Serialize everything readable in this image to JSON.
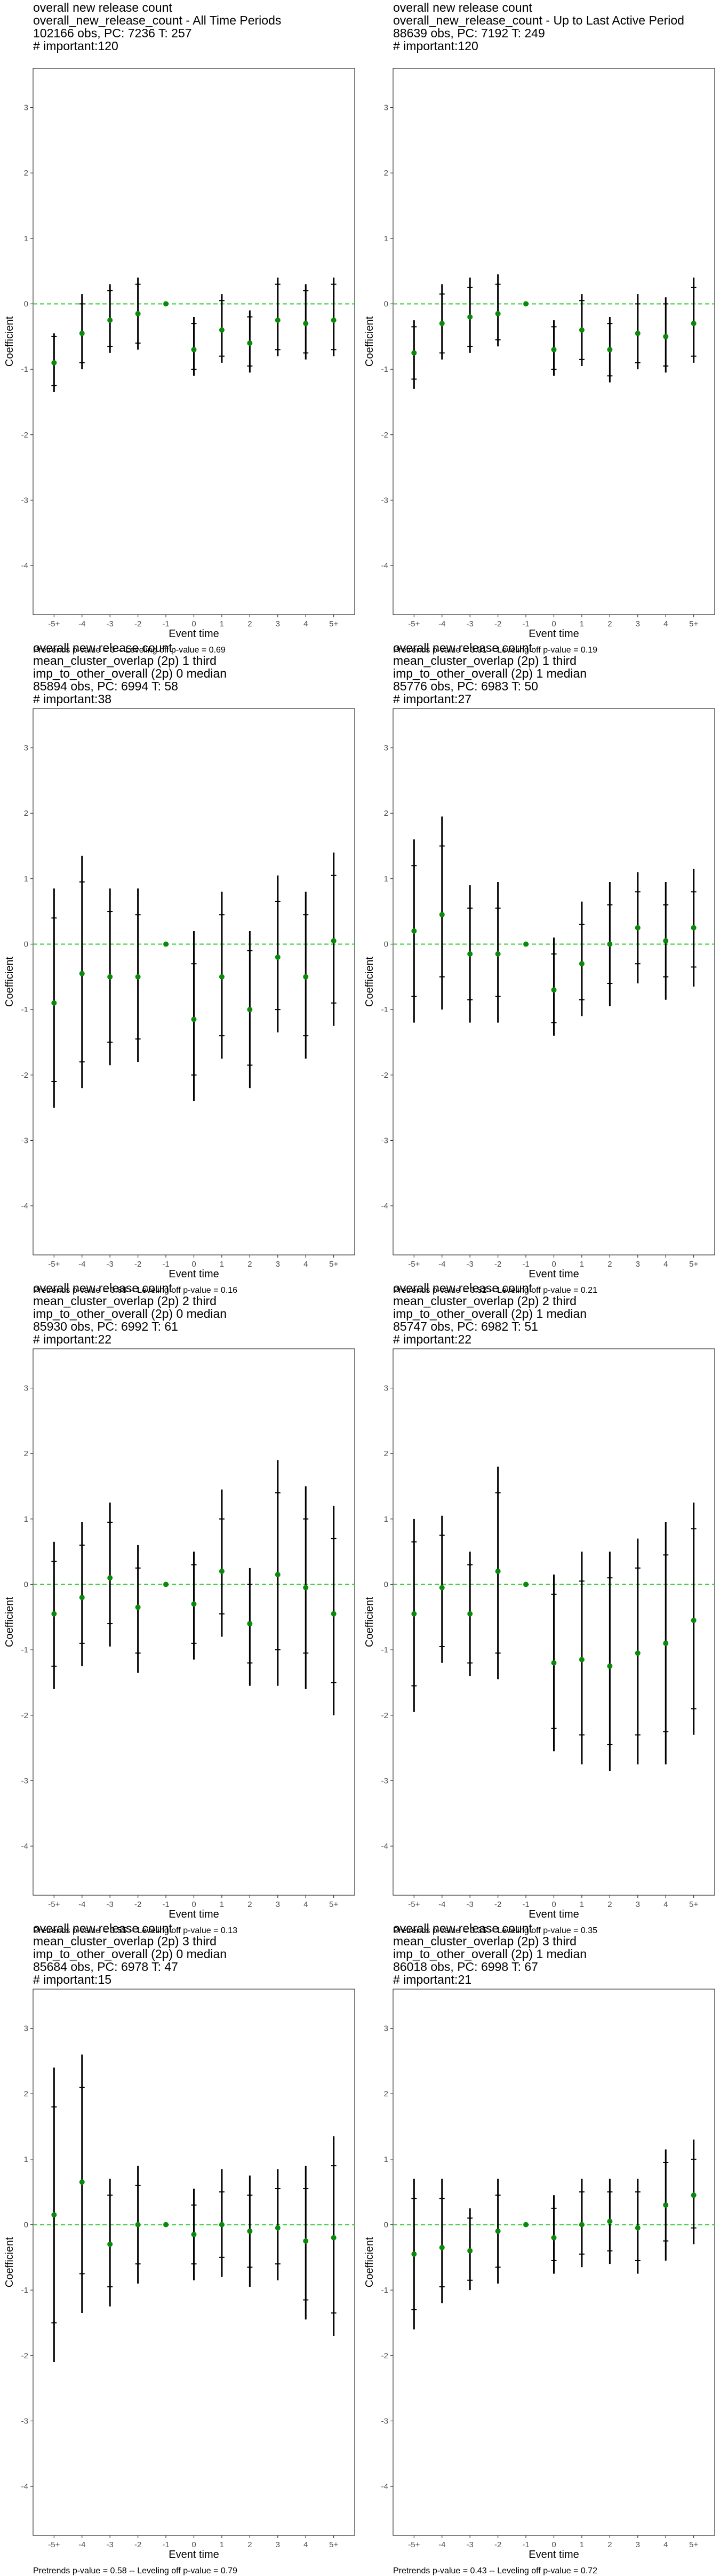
{
  "colors": {
    "point": "#0a8a0a",
    "zero_line": "#2ecc2e",
    "bar": "#000000",
    "axis_text": "#4d4d4d"
  },
  "chart_data": [
    {
      "type": "scatter",
      "title_lines": [
        "overall new release count",
        "overall_new_release_count - All Time Periods",
        "102166 obs, PC: 7236 T: 257",
        "# important:120"
      ],
      "xlabel": "Event time",
      "ylabel": "Coefficient",
      "categories": [
        "-5+",
        "-4",
        "-3",
        "-2",
        "-1",
        "0",
        "1",
        "2",
        "3",
        "4",
        "5+"
      ],
      "yticks": [
        -4,
        -3,
        -2,
        -1,
        0,
        1,
        2,
        3
      ],
      "ylim": [
        -4.75,
        3.6
      ],
      "reference_line": 0,
      "estimates": [
        -0.9,
        -0.45,
        -0.25,
        -0.15,
        0,
        -0.7,
        -0.4,
        -0.6,
        -0.25,
        -0.3,
        -0.25
      ],
      "ci_inner": [
        [
          -1.25,
          -0.5
        ],
        [
          -0.9,
          0.0
        ],
        [
          -0.65,
          0.2
        ],
        [
          -0.6,
          0.3
        ],
        [
          0,
          0
        ],
        [
          -1.0,
          -0.3
        ],
        [
          -0.8,
          0.05
        ],
        [
          -0.95,
          -0.2
        ],
        [
          -0.7,
          0.3
        ],
        [
          -0.75,
          0.2
        ],
        [
          -0.7,
          0.3
        ]
      ],
      "ci_outer": [
        [
          -1.35,
          -0.45
        ],
        [
          -1.0,
          0.15
        ],
        [
          -0.75,
          0.3
        ],
        [
          -0.7,
          0.4
        ],
        [
          0,
          0
        ],
        [
          -1.1,
          -0.2
        ],
        [
          -0.9,
          0.15
        ],
        [
          -1.05,
          -0.1
        ],
        [
          -0.8,
          0.4
        ],
        [
          -0.85,
          0.3
        ],
        [
          -0.8,
          0.4
        ]
      ],
      "footnote": "Pretrends p-value = 0 -- Leveling off p-value = 0.69"
    },
    {
      "type": "scatter",
      "title_lines": [
        "overall new release count",
        "overall_new_release_count - Up to Last Active Period",
        "88639 obs, PC: 7192 T: 249",
        "# important:120"
      ],
      "xlabel": "Event time",
      "ylabel": "Coefficient",
      "categories": [
        "-5+",
        "-4",
        "-3",
        "-2",
        "-1",
        "0",
        "1",
        "2",
        "3",
        "4",
        "5+"
      ],
      "yticks": [
        -4,
        -3,
        -2,
        -1,
        0,
        1,
        2,
        3
      ],
      "ylim": [
        -4.75,
        3.6
      ],
      "reference_line": 0,
      "estimates": [
        -0.75,
        -0.3,
        -0.2,
        -0.15,
        0,
        -0.7,
        -0.4,
        -0.7,
        -0.45,
        -0.5,
        -0.3
      ],
      "ci_inner": [
        [
          -1.15,
          -0.35
        ],
        [
          -0.75,
          0.15
        ],
        [
          -0.65,
          0.25
        ],
        [
          -0.55,
          0.3
        ],
        [
          0,
          0
        ],
        [
          -1.0,
          -0.35
        ],
        [
          -0.85,
          0.05
        ],
        [
          -1.1,
          -0.3
        ],
        [
          -0.9,
          0.0
        ],
        [
          -0.95,
          0.0
        ],
        [
          -0.8,
          0.25
        ]
      ],
      "ci_outer": [
        [
          -1.3,
          -0.25
        ],
        [
          -0.85,
          0.3
        ],
        [
          -0.75,
          0.4
        ],
        [
          -0.65,
          0.45
        ],
        [
          0,
          0
        ],
        [
          -1.1,
          -0.25
        ],
        [
          -0.95,
          0.15
        ],
        [
          -1.2,
          -0.2
        ],
        [
          -1.0,
          0.15
        ],
        [
          -1.05,
          0.1
        ],
        [
          -0.9,
          0.4
        ]
      ],
      "footnote": "Pretrends p-value = 0.01 -- Leveling off p-value = 0.19"
    },
    {
      "type": "scatter",
      "title_lines": [
        "overall new release count",
        "mean_cluster_overlap (2p) 1 third",
        "imp_to_other_overall (2p) 0 median",
        "85894 obs, PC: 6994 T: 58",
        "# important:38"
      ],
      "xlabel": "Event time",
      "ylabel": "Coefficient",
      "categories": [
        "-5+",
        "-4",
        "-3",
        "-2",
        "-1",
        "0",
        "1",
        "2",
        "3",
        "4",
        "5+"
      ],
      "yticks": [
        -4,
        -3,
        -2,
        -1,
        0,
        1,
        2,
        3
      ],
      "ylim": [
        -4.75,
        3.6
      ],
      "reference_line": 0,
      "estimates": [
        -0.9,
        -0.45,
        -0.5,
        -0.5,
        0,
        -1.15,
        -0.5,
        -1.0,
        -0.2,
        -0.5,
        0.05
      ],
      "ci_inner": [
        [
          -2.1,
          0.4
        ],
        [
          -1.8,
          0.95
        ],
        [
          -1.5,
          0.5
        ],
        [
          -1.45,
          0.45
        ],
        [
          0,
          0
        ],
        [
          -2.0,
          -0.3
        ],
        [
          -1.4,
          0.45
        ],
        [
          -1.85,
          -0.1
        ],
        [
          -1.0,
          0.65
        ],
        [
          -1.4,
          0.45
        ],
        [
          -0.9,
          1.05
        ]
      ],
      "ci_outer": [
        [
          -2.5,
          0.85
        ],
        [
          -2.2,
          1.35
        ],
        [
          -1.85,
          0.85
        ],
        [
          -1.8,
          0.85
        ],
        [
          0,
          0
        ],
        [
          -2.4,
          0.2
        ],
        [
          -1.75,
          0.8
        ],
        [
          -2.2,
          0.2
        ],
        [
          -1.35,
          1.05
        ],
        [
          -1.75,
          0.8
        ],
        [
          -1.25,
          1.4
        ]
      ],
      "footnote": "Pretrends p-value = 0.68 -- Leveling off p-value = 0.16"
    },
    {
      "type": "scatter",
      "title_lines": [
        "overall new release count",
        "mean_cluster_overlap (2p) 1 third",
        "imp_to_other_overall (2p) 1 median",
        "85776 obs, PC: 6983 T: 50",
        "# important:27"
      ],
      "xlabel": "Event time",
      "ylabel": "Coefficient",
      "categories": [
        "-5+",
        "-4",
        "-3",
        "-2",
        "-1",
        "0",
        "1",
        "2",
        "3",
        "4",
        "5+"
      ],
      "yticks": [
        -4,
        -3,
        -2,
        -1,
        0,
        1,
        2,
        3
      ],
      "ylim": [
        -4.75,
        3.6
      ],
      "reference_line": 0,
      "estimates": [
        0.2,
        0.45,
        -0.15,
        -0.15,
        0,
        -0.7,
        -0.3,
        0.0,
        0.25,
        0.05,
        0.25
      ],
      "ci_inner": [
        [
          -0.8,
          1.2
        ],
        [
          -0.5,
          1.5
        ],
        [
          -0.85,
          0.55
        ],
        [
          -0.8,
          0.55
        ],
        [
          0,
          0
        ],
        [
          -1.2,
          -0.15
        ],
        [
          -0.85,
          0.3
        ],
        [
          -0.6,
          0.6
        ],
        [
          -0.3,
          0.8
        ],
        [
          -0.5,
          0.6
        ],
        [
          -0.35,
          0.8
        ]
      ],
      "ci_outer": [
        [
          -1.2,
          1.6
        ],
        [
          -1.0,
          1.95
        ],
        [
          -1.2,
          0.9
        ],
        [
          -1.2,
          0.95
        ],
        [
          0,
          0
        ],
        [
          -1.4,
          0.1
        ],
        [
          -1.1,
          0.65
        ],
        [
          -0.95,
          0.95
        ],
        [
          -0.6,
          1.1
        ],
        [
          -0.85,
          0.95
        ],
        [
          -0.65,
          1.15
        ]
      ],
      "footnote": "Pretrends p-value = 0.52 -- Leveling off p-value = 0.21"
    },
    {
      "type": "scatter",
      "title_lines": [
        "overall new release count",
        "mean_cluster_overlap (2p) 2 third",
        "imp_to_other_overall (2p) 0 median",
        "85930 obs, PC: 6992 T: 61",
        "# important:22"
      ],
      "xlabel": "Event time",
      "ylabel": "Coefficient",
      "categories": [
        "-5+",
        "-4",
        "-3",
        "-2",
        "-1",
        "0",
        "1",
        "2",
        "3",
        "4",
        "5+"
      ],
      "yticks": [
        -4,
        -3,
        -2,
        -1,
        0,
        1,
        2,
        3
      ],
      "ylim": [
        -4.75,
        3.6
      ],
      "reference_line": 0,
      "estimates": [
        -0.45,
        -0.2,
        0.1,
        -0.35,
        0,
        -0.3,
        0.2,
        -0.6,
        0.15,
        -0.05,
        -0.45
      ],
      "ci_inner": [
        [
          -1.25,
          0.35
        ],
        [
          -0.9,
          0.6
        ],
        [
          -0.6,
          0.95
        ],
        [
          -1.05,
          0.25
        ],
        [
          0,
          0
        ],
        [
          -0.9,
          0.3
        ],
        [
          -0.45,
          1.0
        ],
        [
          -1.2,
          0.0
        ],
        [
          -1.0,
          1.4
        ],
        [
          -1.05,
          1.0
        ],
        [
          -1.5,
          0.7
        ]
      ],
      "ci_outer": [
        [
          -1.6,
          0.65
        ],
        [
          -1.25,
          0.95
        ],
        [
          -0.95,
          1.25
        ],
        [
          -1.35,
          0.6
        ],
        [
          0,
          0
        ],
        [
          -1.15,
          0.5
        ],
        [
          -0.8,
          1.45
        ],
        [
          -1.55,
          0.25
        ],
        [
          -1.55,
          1.9
        ],
        [
          -1.6,
          1.5
        ],
        [
          -2.0,
          1.2
        ]
      ],
      "footnote": "Pretrends p-value = 0.55 -- Leveling off p-value = 0.13"
    },
    {
      "type": "scatter",
      "title_lines": [
        "overall new release count",
        "mean_cluster_overlap (2p) 2 third",
        "imp_to_other_overall (2p) 1 median",
        "85747 obs, PC: 6982 T: 51",
        "# important:22"
      ],
      "xlabel": "Event time",
      "ylabel": "Coefficient",
      "categories": [
        "-5+",
        "-4",
        "-3",
        "-2",
        "-1",
        "0",
        "1",
        "2",
        "3",
        "4",
        "5+"
      ],
      "yticks": [
        -4,
        -3,
        -2,
        -1,
        0,
        1,
        2,
        3
      ],
      "ylim": [
        -4.75,
        3.6
      ],
      "reference_line": 0,
      "estimates": [
        -0.45,
        -0.05,
        -0.45,
        0.2,
        0,
        -1.2,
        -1.15,
        -1.25,
        -1.05,
        -0.9,
        -0.55
      ],
      "ci_inner": [
        [
          -1.55,
          0.65
        ],
        [
          -0.95,
          0.75
        ],
        [
          -1.2,
          0.3
        ],
        [
          -1.05,
          1.4
        ],
        [
          0,
          0
        ],
        [
          -2.2,
          -0.15
        ],
        [
          -2.3,
          0.05
        ],
        [
          -2.45,
          0.1
        ],
        [
          -2.3,
          0.25
        ],
        [
          -2.25,
          0.45
        ],
        [
          -1.9,
          0.85
        ]
      ],
      "ci_outer": [
        [
          -1.95,
          1.0
        ],
        [
          -1.2,
          1.05
        ],
        [
          -1.4,
          0.5
        ],
        [
          -1.45,
          1.8
        ],
        [
          0,
          0
        ],
        [
          -2.55,
          0.15
        ],
        [
          -2.75,
          0.5
        ],
        [
          -2.85,
          0.5
        ],
        [
          -2.75,
          0.7
        ],
        [
          -2.75,
          0.95
        ],
        [
          -2.3,
          1.25
        ]
      ],
      "footnote": "Pretrends p-value = 0.35 -- Leveling off p-value = 0.35"
    },
    {
      "type": "scatter",
      "title_lines": [
        "overall new release count",
        "mean_cluster_overlap (2p) 3 third",
        "imp_to_other_overall (2p) 0 median",
        "85684 obs, PC: 6978 T: 47",
        "# important:15"
      ],
      "xlabel": "Event time",
      "ylabel": "Coefficient",
      "categories": [
        "-5+",
        "-4",
        "-3",
        "-2",
        "-1",
        "0",
        "1",
        "2",
        "3",
        "4",
        "5+"
      ],
      "yticks": [
        -4,
        -3,
        -2,
        -1,
        0,
        1,
        2,
        3
      ],
      "ylim": [
        -4.75,
        3.6
      ],
      "reference_line": 0,
      "estimates": [
        0.15,
        0.65,
        -0.3,
        0.0,
        0,
        -0.15,
        0.0,
        -0.1,
        -0.05,
        -0.25,
        -0.2
      ],
      "ci_inner": [
        [
          -1.5,
          1.8
        ],
        [
          -0.75,
          2.1
        ],
        [
          -0.95,
          0.45
        ],
        [
          -0.6,
          0.6
        ],
        [
          0,
          0
        ],
        [
          -0.6,
          0.3
        ],
        [
          -0.5,
          0.5
        ],
        [
          -0.65,
          0.45
        ],
        [
          -0.6,
          0.55
        ],
        [
          -1.15,
          0.55
        ],
        [
          -1.35,
          0.9
        ]
      ],
      "ci_outer": [
        [
          -2.1,
          2.4
        ],
        [
          -1.35,
          2.6
        ],
        [
          -1.25,
          0.7
        ],
        [
          -0.9,
          0.9
        ],
        [
          0,
          0
        ],
        [
          -0.85,
          0.55
        ],
        [
          -0.8,
          0.85
        ],
        [
          -0.95,
          0.75
        ],
        [
          -0.85,
          0.85
        ],
        [
          -1.45,
          0.9
        ],
        [
          -1.7,
          1.35
        ]
      ],
      "footnote": "Pretrends p-value = 0.58 -- Leveling off p-value = 0.79"
    },
    {
      "type": "scatter",
      "title_lines": [
        "overall new release count",
        "mean_cluster_overlap (2p) 3 third",
        "imp_to_other_overall (2p) 1 median",
        "86018 obs, PC: 6998 T: 67",
        "# important:21"
      ],
      "xlabel": "Event time",
      "ylabel": "Coefficient",
      "categories": [
        "-5+",
        "-4",
        "-3",
        "-2",
        "-1",
        "0",
        "1",
        "2",
        "3",
        "4",
        "5+"
      ],
      "yticks": [
        -4,
        -3,
        -2,
        -1,
        0,
        1,
        2,
        3
      ],
      "ylim": [
        -4.75,
        3.6
      ],
      "reference_line": 0,
      "estimates": [
        -0.45,
        -0.35,
        -0.4,
        -0.1,
        0,
        -0.2,
        0.0,
        0.05,
        -0.05,
        0.3,
        0.45
      ],
      "ci_inner": [
        [
          -1.3,
          0.4
        ],
        [
          -0.95,
          0.4
        ],
        [
          -0.85,
          0.1
        ],
        [
          -0.65,
          0.45
        ],
        [
          0,
          0
        ],
        [
          -0.55,
          0.25
        ],
        [
          -0.45,
          0.5
        ],
        [
          -0.4,
          0.5
        ],
        [
          -0.55,
          0.5
        ],
        [
          -0.25,
          0.95
        ],
        [
          -0.05,
          1.0
        ]
      ],
      "ci_outer": [
        [
          -1.6,
          0.7
        ],
        [
          -1.2,
          0.7
        ],
        [
          -1.0,
          0.25
        ],
        [
          -0.9,
          0.7
        ],
        [
          0,
          0
        ],
        [
          -0.75,
          0.45
        ],
        [
          -0.65,
          0.7
        ],
        [
          -0.6,
          0.7
        ],
        [
          -0.75,
          0.7
        ],
        [
          -0.55,
          1.15
        ],
        [
          -0.3,
          1.3
        ]
      ],
      "footnote": "Pretrends p-value = 0.43 -- Leveling off p-value = 0.72"
    }
  ]
}
